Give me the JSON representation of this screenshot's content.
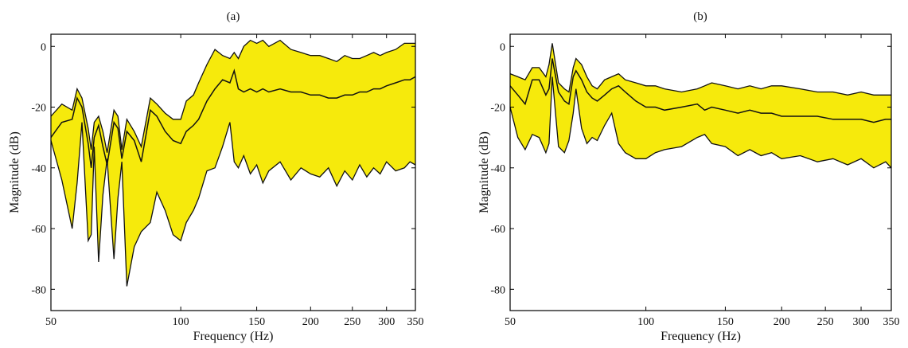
{
  "colors": {
    "band_fill": "#f6ea0c",
    "line": "#111111",
    "axis": "#000000",
    "background": "#ffffff"
  },
  "chart_data": [
    {
      "type": "area",
      "title": "(a)",
      "xlabel": "Frequency (Hz)",
      "ylabel": "Magnitude (dB)",
      "xscale": "log",
      "xlim": [
        50,
        350
      ],
      "ylim": [
        -87,
        4
      ],
      "xticks": [
        50,
        100,
        150,
        200,
        250,
        300,
        350
      ],
      "yticks": [
        0,
        -20,
        -40,
        -60,
        -80
      ],
      "grid": false,
      "x": [
        50,
        53,
        56,
        57.5,
        59,
        61,
        62,
        63,
        64.5,
        66,
        67.5,
        70,
        71.5,
        73,
        75,
        78,
        81,
        85,
        88,
        92,
        96,
        100,
        103,
        107,
        110,
        115,
        120,
        125,
        130,
        133,
        136,
        140,
        145,
        150,
        155,
        160,
        170,
        180,
        190,
        200,
        210,
        220,
        230,
        240,
        250,
        260,
        270,
        280,
        290,
        300,
        315,
        330,
        340,
        350
      ],
      "upper": [
        -23,
        -19,
        -21,
        -14,
        -17,
        -27,
        -34,
        -25,
        -23,
        -28,
        -35,
        -21,
        -23,
        -34,
        -24,
        -28,
        -33,
        -17,
        -19,
        -22,
        -24,
        -24,
        -18,
        -16,
        -12,
        -6,
        -1,
        -3,
        -4,
        -2,
        -4,
        0,
        2,
        1,
        2,
        0,
        2,
        -1,
        -2,
        -3,
        -3,
        -4,
        -5,
        -3,
        -4,
        -4,
        -3,
        -2,
        -3,
        -2,
        -1,
        1,
        1,
        1
      ],
      "series": [
        {
          "values": [
            -30,
            -25,
            -24,
            -17,
            -20,
            -32,
            -40,
            -30,
            -26,
            -33,
            -39,
            -25,
            -27,
            -37,
            -28,
            -31,
            -38,
            -21,
            -23,
            -28,
            -31,
            -32,
            -28,
            -26,
            -24,
            -18,
            -14,
            -11,
            -12,
            -8,
            -14,
            -15,
            -14,
            -15,
            -14,
            -15,
            -14,
            -15,
            -15,
            -16,
            -16,
            -17,
            -17,
            -16,
            -16,
            -15,
            -15,
            -14,
            -14,
            -13,
            -12,
            -11,
            -11,
            -10
          ]
        }
      ],
      "lower": [
        -31,
        -44,
        -60,
        -45,
        -25,
        -64,
        -62,
        -33,
        -71,
        -49,
        -37,
        -70,
        -50,
        -38,
        -79,
        -66,
        -61,
        -58,
        -48,
        -54,
        -62,
        -64,
        -58,
        -54,
        -50,
        -41,
        -40,
        -33,
        -25,
        -38,
        -40,
        -36,
        -42,
        -39,
        -45,
        -41,
        -38,
        -44,
        -40,
        -42,
        -43,
        -40,
        -46,
        -41,
        -44,
        -39,
        -43,
        -40,
        -42,
        -38,
        -41,
        -40,
        -38,
        -39
      ]
    },
    {
      "type": "area",
      "title": "(b)",
      "xlabel": "Frequency (Hz)",
      "ylabel": "Magnitude (dB)",
      "xscale": "log",
      "xlim": [
        50,
        350
      ],
      "ylim": [
        -87,
        4
      ],
      "xticks": [
        50,
        100,
        150,
        200,
        250,
        300,
        350
      ],
      "yticks": [
        0,
        -20,
        -40,
        -60,
        -80
      ],
      "grid": false,
      "x": [
        50,
        52,
        54,
        56,
        58,
        60,
        61,
        62,
        64,
        66,
        67.5,
        69,
        70,
        72,
        74,
        76,
        78,
        81,
        84,
        87,
        90,
        95,
        100,
        105,
        110,
        120,
        130,
        135,
        140,
        150,
        160,
        170,
        180,
        190,
        200,
        220,
        240,
        260,
        280,
        300,
        320,
        340,
        350
      ],
      "upper": [
        -9,
        -10,
        -11,
        -7,
        -7,
        -10,
        -6,
        1,
        -12,
        -14,
        -15,
        -7,
        -4,
        -6,
        -10,
        -13,
        -14,
        -11,
        -10,
        -9,
        -11,
        -12,
        -13,
        -13,
        -14,
        -15,
        -14,
        -13,
        -12,
        -13,
        -14,
        -13,
        -14,
        -13,
        -13,
        -14,
        -15,
        -15,
        -16,
        -15,
        -16,
        -16,
        -16
      ],
      "series": [
        {
          "values": [
            -13,
            -16,
            -19,
            -11,
            -11,
            -16,
            -14,
            -4,
            -15,
            -18,
            -19,
            -10,
            -8,
            -11,
            -15,
            -17,
            -18,
            -16,
            -14,
            -13,
            -15,
            -18,
            -20,
            -20,
            -21,
            -20,
            -19,
            -21,
            -20,
            -21,
            -22,
            -21,
            -22,
            -22,
            -23,
            -23,
            -23,
            -24,
            -24,
            -24,
            -25,
            -24,
            -24
          ]
        }
      ],
      "lower": [
        -20,
        -30,
        -34,
        -29,
        -30,
        -35,
        -32,
        -10,
        -33,
        -35,
        -31,
        -22,
        -14,
        -27,
        -32,
        -30,
        -31,
        -26,
        -22,
        -32,
        -35,
        -37,
        -37,
        -35,
        -34,
        -33,
        -30,
        -29,
        -32,
        -33,
        -36,
        -34,
        -36,
        -35,
        -37,
        -36,
        -38,
        -37,
        -39,
        -37,
        -40,
        -38,
        -40
      ]
    }
  ]
}
